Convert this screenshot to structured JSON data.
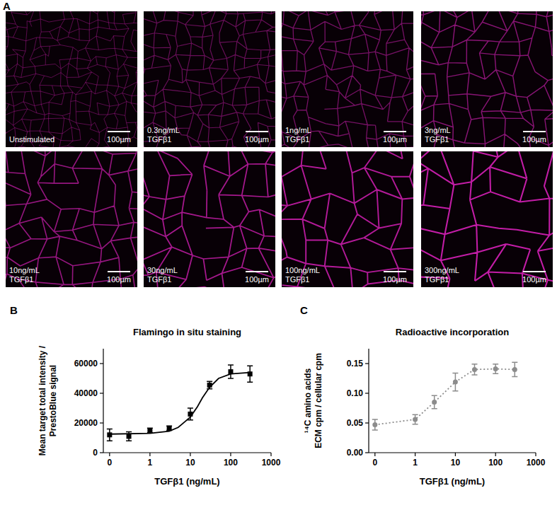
{
  "panel_labels": [
    "A",
    "B",
    "C"
  ],
  "image_panel": {
    "images": [
      {
        "caption": [
          "Unstimulated"
        ],
        "scale_bar": "100µm"
      },
      {
        "caption": [
          "0.3ng/mL",
          "TGFβ1"
        ],
        "scale_bar": "100µm"
      },
      {
        "caption": [
          "1ng/mL",
          "TGFβ1"
        ],
        "scale_bar": "100µm"
      },
      {
        "caption": [
          "3ng/mL",
          "TGFβ1"
        ],
        "scale_bar": "100µm"
      },
      {
        "caption": [
          "10ng/mL",
          "TGFβ1"
        ],
        "scale_bar": "100µm"
      },
      {
        "caption": [
          "30ng/mL",
          "TGFβ1"
        ],
        "scale_bar": "100µm"
      },
      {
        "caption": [
          "100ng/mL",
          "TGFβ1"
        ],
        "scale_bar": "100µm"
      },
      {
        "caption": [
          "300ng/mL",
          "TGFβ1"
        ],
        "scale_bar": "100µm"
      }
    ]
  },
  "chart_data": [
    {
      "type": "scatter",
      "title": "Flamingo in situ staining",
      "xlabel": "TGFβ1 (ng/mL)",
      "ylabel": [
        "Mean target total intensity /",
        "PrestoBlue signal"
      ],
      "log": "x",
      "xlim": [
        0.07,
        1000
      ],
      "ylim": [
        0,
        70000
      ],
      "xticks": [
        {
          "value": 0.1,
          "label": "0"
        },
        1,
        10,
        100,
        1000
      ],
      "yticks": [
        0,
        20000,
        40000,
        60000
      ],
      "series": [
        {
          "type": "scatter",
          "marker": "square",
          "color": "#000000",
          "x": [
            0.1,
            0.3,
            1,
            3,
            10,
            30,
            100,
            300
          ],
          "values": [
            12000,
            11000,
            15000,
            16500,
            26000,
            45500,
            54500,
            53000
          ],
          "errors": [
            4000,
            3000,
            1500,
            1500,
            4000,
            2500,
            4500,
            5500
          ]
        },
        {
          "type": "line",
          "line_style": "solid",
          "color": "#000000",
          "x": [
            0.1,
            1,
            3,
            5,
            10,
            15,
            20,
            30,
            50,
            100,
            300
          ],
          "values": [
            12500,
            13000,
            14500,
            17000,
            24000,
            31000,
            37000,
            44000,
            50000,
            53000,
            54000
          ]
        }
      ]
    },
    {
      "type": "line",
      "title": "Radioactive incorporation",
      "xlabel": "TGFβ1 (ng/mL)",
      "ylabel": [
        "¹⁴C amino acids",
        "ECM cpm / cellular cpm"
      ],
      "log": "x",
      "xlim": [
        0.07,
        1000
      ],
      "ylim": [
        0,
        0.175
      ],
      "xticks": [
        {
          "value": 0.1,
          "label": "0"
        },
        1,
        10,
        100,
        1000
      ],
      "yticks": [
        {
          "value": 0,
          "label": "0.00"
        },
        {
          "value": 0.05,
          "label": "0.05"
        },
        {
          "value": 0.1,
          "label": "0.10"
        },
        {
          "value": 0.15,
          "label": "0.15"
        }
      ],
      "series": [
        {
          "type": "line",
          "line_style": "dotted",
          "marker": "circle",
          "color": "#8c8c8c",
          "x": [
            0.1,
            1,
            3,
            10,
            30,
            100,
            300
          ],
          "values": [
            0.047,
            0.056,
            0.085,
            0.119,
            0.14,
            0.141,
            0.14
          ],
          "errors": [
            0.009,
            0.008,
            0.011,
            0.015,
            0.009,
            0.008,
            0.012
          ]
        }
      ]
    }
  ]
}
